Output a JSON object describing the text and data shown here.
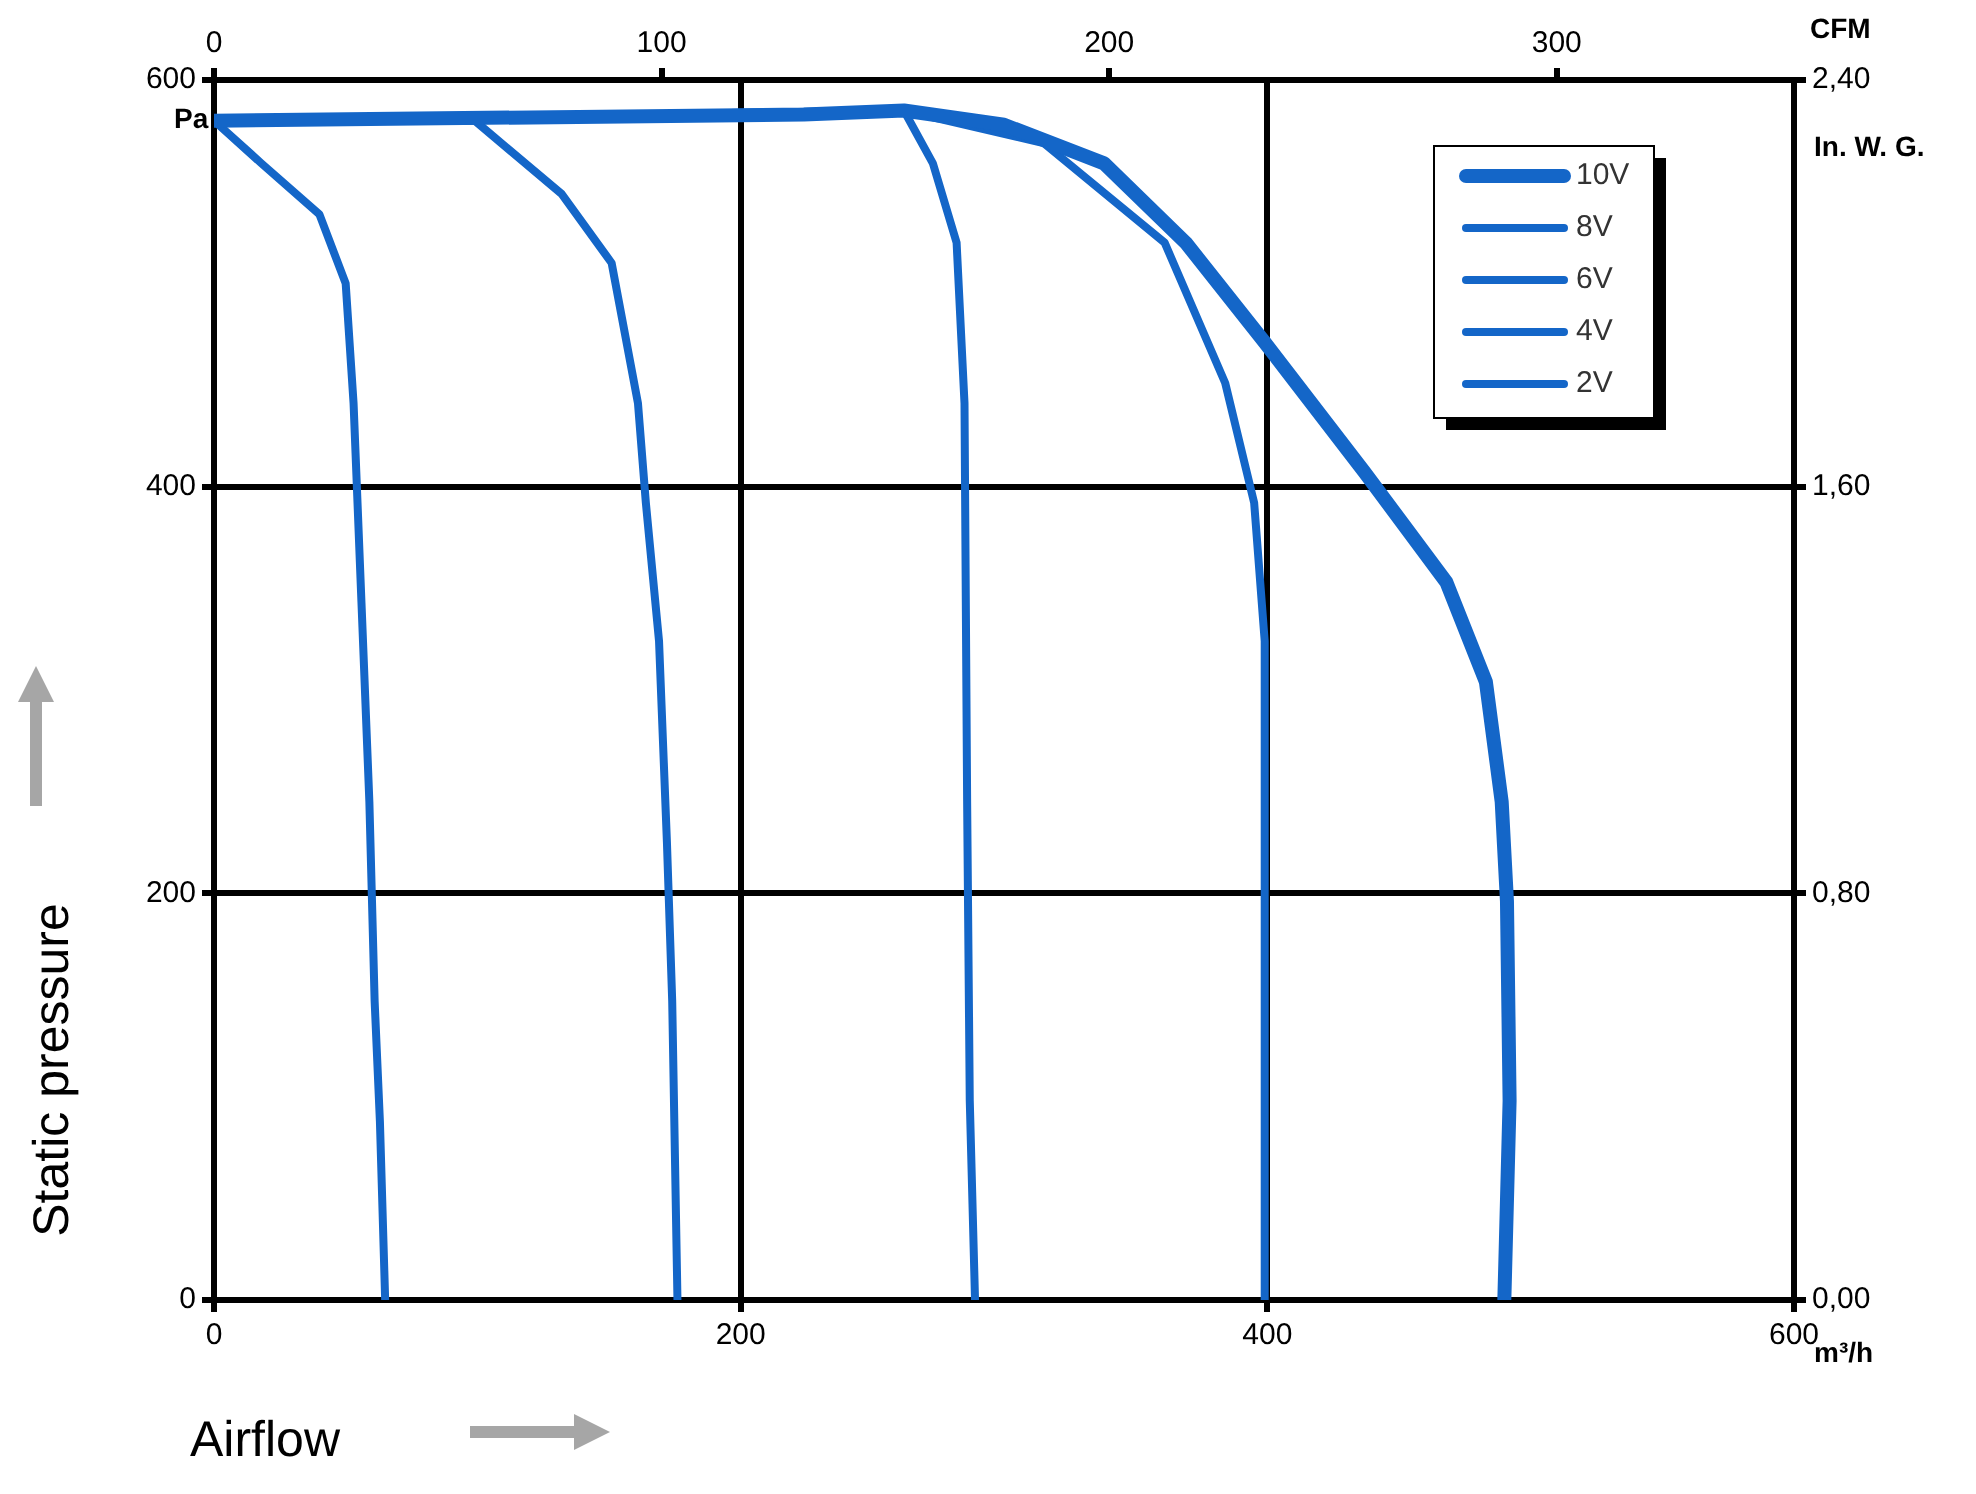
{
  "chart_data": {
    "type": "line",
    "xlabel": "Airflow",
    "ylabel": "Static pressure",
    "x2label": "CFM",
    "y2label": "In. W. G.",
    "annotations": [
      "Pa",
      "m³/h"
    ],
    "xlim": [
      0,
      600
    ],
    "xticks": [
      0,
      200,
      400,
      600
    ],
    "ylim": [
      0,
      600
    ],
    "yticks": [
      0,
      200,
      400,
      600
    ],
    "x2lim": [
      0,
      353
    ],
    "x2ticks": [
      0,
      100,
      200,
      300
    ],
    "y2lim": [
      0,
      2.4
    ],
    "y2ticks": [
      {
        "value": 0,
        "label": "0,00"
      },
      {
        "value": 0.8,
        "label": "0,80"
      },
      {
        "value": 1.6,
        "label": "1,60"
      },
      {
        "value": 2.4,
        "label": "2,40"
      }
    ],
    "grid": true,
    "legend": "top right",
    "marker": "none",
    "line_style": "solid",
    "series": [
      {
        "name": "10V",
        "color": "#1466c8",
        "x": [
          0,
          224,
          262,
          300,
          338,
          369,
          399,
          437,
          468,
          483,
          489,
          491,
          492,
          490
        ],
        "values": [
          580,
          583,
          585,
          578,
          559,
          520,
          471,
          407,
          353,
          304,
          245,
          196,
          98,
          0
        ]
      },
      {
        "name": "8V",
        "color": "#1466c8",
        "x": [
          0,
          262,
          315,
          361,
          384,
          395,
          399,
          399
        ],
        "values": [
          580,
          585,
          569,
          520,
          451,
          392,
          324,
          0
        ]
      },
      {
        "name": "6V",
        "color": "#1466c8",
        "x": [
          0,
          262,
          273,
          282,
          285,
          286,
          287,
          289
        ],
        "values": [
          580,
          585,
          559,
          520,
          441,
          245,
          98,
          0
        ]
      },
      {
        "name": "4V",
        "color": "#1466c8",
        "x": [
          0,
          99,
          132,
          151,
          161,
          164,
          169,
          172,
          174,
          176
        ],
        "values": [
          580,
          580,
          544,
          510,
          441,
          392,
          324,
          225,
          147,
          0
        ]
      },
      {
        "name": "2V",
        "color": "#1466c8",
        "x": [
          0,
          18,
          40,
          50,
          53,
          56,
          59,
          61,
          63,
          65
        ],
        "values": [
          580,
          559,
          534,
          500,
          441,
          343,
          245,
          147,
          88,
          0
        ]
      }
    ]
  }
}
